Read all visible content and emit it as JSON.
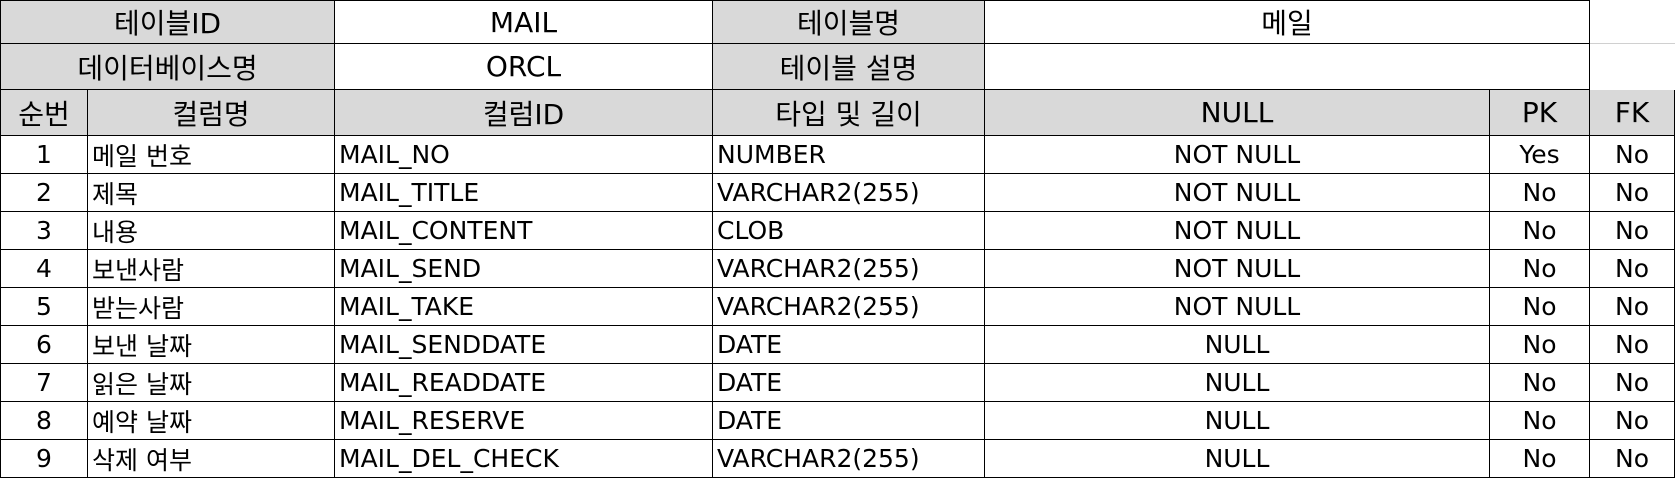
{
  "meta": {
    "table_id_label": "테이블ID",
    "table_id": "MAIL",
    "table_name_label": "테이블명",
    "table_name": "메일",
    "db_name_label": "데이터베이스명",
    "db_name": "ORCL",
    "table_desc_label": "테이블 설명",
    "table_desc": ""
  },
  "columns": [
    "순번",
    "컬럼명",
    "컬럼ID",
    "타입 및 길이",
    "NULL",
    "PK",
    "FK"
  ],
  "rows": [
    [
      "1",
      "메일 번호",
      "MAIL_NO",
      "NUMBER",
      "NOT NULL",
      "Yes",
      "No"
    ],
    [
      "2",
      "제목",
      "MAIL_TITLE",
      "VARCHAR2(255)",
      "NOT NULL",
      "No",
      "No"
    ],
    [
      "3",
      "내용",
      "MAIL_CONTENT",
      "CLOB",
      "NOT NULL",
      "No",
      "No"
    ],
    [
      "4",
      "보낸사람",
      "MAIL_SEND",
      "VARCHAR2(255)",
      "NOT NULL",
      "No",
      "No"
    ],
    [
      "5",
      "받는사람",
      "MAIL_TAKE",
      "VARCHAR2(255)",
      "NOT NULL",
      "No",
      "No"
    ],
    [
      "6",
      "보낸 날짜",
      "MAIL_SENDDATE",
      "DATE",
      "NULL",
      "No",
      "No"
    ],
    [
      "7",
      "읽은 날짜",
      "MAIL_READDATE",
      "DATE",
      "NULL",
      "No",
      "No"
    ],
    [
      "8",
      "예약 날짜",
      "MAIL_RESERVE",
      "DATE",
      "NULL",
      "No",
      "No"
    ],
    [
      "9",
      "삭제 여부",
      "MAIL_DEL_CHECK",
      "VARCHAR2(255)",
      "NULL",
      "No",
      "No"
    ]
  ]
}
